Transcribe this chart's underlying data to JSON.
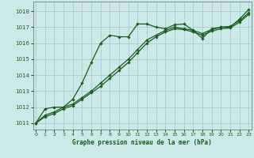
{
  "title": "Graphe pression niveau de la mer (hPa)",
  "bg_color": "#cce8e8",
  "grid_color": "#aacccc",
  "line_color": "#1a5c1a",
  "xlim": [
    -0.3,
    23.3
  ],
  "ylim": [
    1010.6,
    1018.6
  ],
  "yticks": [
    1011,
    1012,
    1013,
    1014,
    1015,
    1016,
    1017,
    1018
  ],
  "xticks": [
    0,
    1,
    2,
    3,
    4,
    5,
    6,
    7,
    8,
    9,
    10,
    11,
    12,
    13,
    14,
    15,
    16,
    17,
    18,
    19,
    20,
    21,
    22,
    23
  ],
  "series": [
    [
      1011.0,
      1011.9,
      1012.0,
      1012.0,
      1012.5,
      1013.5,
      1014.8,
      1016.0,
      1016.5,
      1016.4,
      1016.4,
      1017.2,
      1017.2,
      1017.0,
      1016.9,
      1017.15,
      1017.2,
      1016.8,
      1016.3,
      1016.9,
      1017.0,
      1017.0,
      1017.5,
      1018.1
    ],
    [
      1011.0,
      1011.5,
      1011.7,
      1012.0,
      1012.2,
      1012.6,
      1013.0,
      1013.5,
      1014.0,
      1014.5,
      1015.0,
      1015.6,
      1016.2,
      1016.5,
      1016.8,
      1017.0,
      1016.9,
      1016.8,
      1016.6,
      1016.85,
      1017.0,
      1017.05,
      1017.4,
      1017.9
    ],
    [
      1011.0,
      1011.4,
      1011.6,
      1011.9,
      1012.1,
      1012.5,
      1012.9,
      1013.3,
      1013.8,
      1014.3,
      1014.8,
      1015.4,
      1016.0,
      1016.4,
      1016.7,
      1016.9,
      1016.85,
      1016.7,
      1016.5,
      1016.75,
      1016.9,
      1016.95,
      1017.3,
      1017.8
    ]
  ]
}
